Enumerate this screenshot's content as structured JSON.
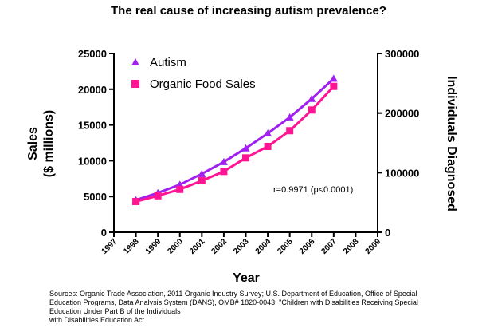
{
  "chart_data": {
    "type": "line",
    "title": "The real cause of increasing autism prevalence?",
    "xlabel": "Year",
    "ylabel_line1": "Sales",
    "ylabel_line2": "($ millions)",
    "y2label": "Individuals Diagnosed",
    "x_ticks": [
      "1997",
      "1998",
      "1999",
      "2000",
      "2001",
      "2002",
      "2003",
      "2004",
      "2005",
      "2006",
      "2007",
      "2008",
      "2009"
    ],
    "x_range": [
      1997,
      2009
    ],
    "y_ticks": [
      "0",
      "5000",
      "10000",
      "15000",
      "20000",
      "25000"
    ],
    "ylim": [
      0,
      25000
    ],
    "y2_ticks": [
      "0",
      "100000",
      "200000",
      "300000"
    ],
    "y2lim": [
      0,
      300000
    ],
    "grid": false,
    "legend_position": "top-left",
    "series": [
      {
        "name": "Autism",
        "axis": "right",
        "color": "#A020F0",
        "marker": "triangle",
        "x": [
          1998,
          1999,
          2000,
          2001,
          2002,
          2003,
          2004,
          2005,
          2006,
          2007
        ],
        "values": [
          54000,
          66000,
          80000,
          98000,
          118000,
          141000,
          166000,
          193000,
          224000,
          258000
        ]
      },
      {
        "name": "Organic Food Sales",
        "axis": "left",
        "color": "#FF1493",
        "marker": "square",
        "x": [
          1998,
          1999,
          2000,
          2001,
          2002,
          2003,
          2004,
          2005,
          2006,
          2007
        ],
        "values": [
          4300,
          5100,
          6000,
          7200,
          8500,
          10400,
          12000,
          14200,
          17100,
          20400
        ]
      }
    ],
    "annotation": "r=0.9971 (p<0.0001)",
    "source_lines": [
      "Sources: Organic Trade Association,  2011 Organic Industry Survey; U.S. Department of Education, Office of Special",
      "Education Programs, Data Analysis System (DANS), OMB# 1820-0043: \"Children with Disabilities Receiving Special",
      "Education Under Part B of the Individuals",
      "with Disabilities Education Act"
    ]
  }
}
